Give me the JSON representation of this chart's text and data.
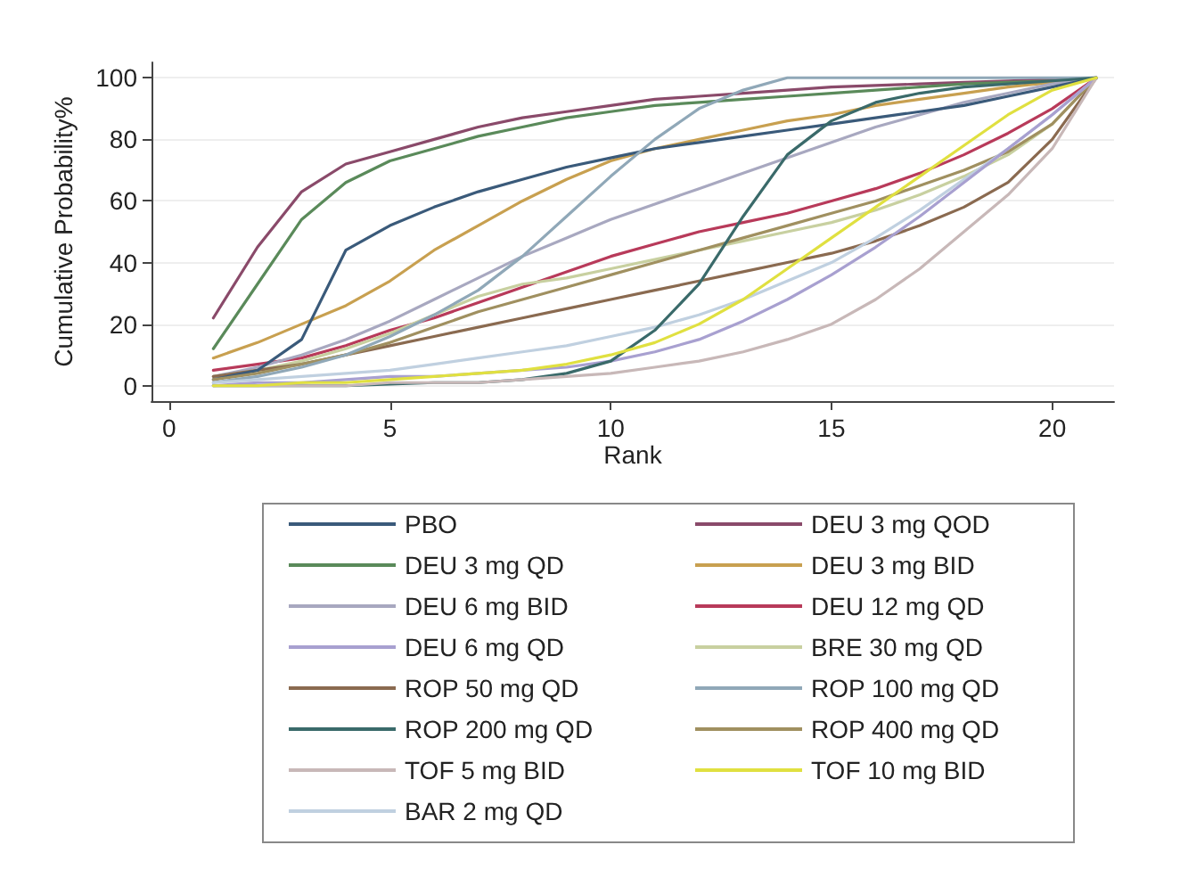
{
  "chart_data": {
    "type": "line",
    "xlabel": "Rank",
    "ylabel": "Cumulative Probability%",
    "x": [
      1,
      2,
      3,
      4,
      5,
      6,
      7,
      8,
      9,
      10,
      11,
      12,
      13,
      14,
      15,
      16,
      17,
      18,
      19,
      20,
      21
    ],
    "xlim": [
      -0.4,
      21.4
    ],
    "xticks": [
      0,
      5,
      10,
      15,
      20
    ],
    "ylim": [
      -5,
      105
    ],
    "yticks": [
      0,
      20,
      40,
      60,
      80,
      100
    ],
    "grid": "y",
    "legend": "bottom",
    "marker": "none",
    "line_style": "solid",
    "series": [
      {
        "name": "PBO",
        "color": "#3a5a7a",
        "values": [
          2,
          5,
          15,
          44,
          52,
          58,
          63,
          67,
          71,
          74,
          77,
          79,
          81,
          83,
          85,
          87,
          89,
          91,
          94,
          97,
          100
        ]
      },
      {
        "name": "DEU 3 mg QOD",
        "color": "#8a4a6a",
        "values": [
          22,
          45,
          63,
          72,
          76,
          80,
          84,
          87,
          89,
          91,
          93,
          94,
          95,
          96,
          97,
          97.5,
          98,
          98.5,
          99,
          99.5,
          100
        ]
      },
      {
        "name": "DEU 3 mg QD",
        "color": "#5a8a5a",
        "values": [
          12,
          33,
          54,
          66,
          73,
          77,
          81,
          84,
          87,
          89,
          91,
          92,
          93,
          94,
          95,
          96,
          97,
          98,
          98.5,
          99,
          100
        ]
      },
      {
        "name": "DEU 3 mg BID",
        "color": "#c8a050",
        "values": [
          9,
          14,
          20,
          26,
          34,
          44,
          52,
          60,
          67,
          73,
          77,
          80,
          83,
          86,
          88,
          91,
          93,
          95,
          97,
          98.5,
          100
        ]
      },
      {
        "name": "DEU 6 mg BID",
        "color": "#a8a8c0",
        "values": [
          3,
          6,
          10,
          15,
          21,
          28,
          35,
          42,
          48,
          54,
          59,
          64,
          69,
          74,
          79,
          84,
          88,
          92,
          95,
          98,
          100
        ]
      },
      {
        "name": "DEU 12 mg QD",
        "color": "#b83a5a",
        "values": [
          5,
          7,
          9,
          13,
          18,
          22,
          27,
          32,
          37,
          42,
          46,
          50,
          53,
          56,
          60,
          64,
          69,
          75,
          82,
          90,
          100
        ]
      },
      {
        "name": "DEU 6 mg QD",
        "color": "#a8a0d0",
        "values": [
          0,
          1,
          1,
          2,
          3,
          3,
          4,
          5,
          6,
          8,
          11,
          15,
          21,
          28,
          36,
          45,
          55,
          66,
          77,
          88,
          100
        ]
      },
      {
        "name": "BRE 30 mg QD",
        "color": "#c8d0a0",
        "values": [
          3,
          5,
          8,
          12,
          17,
          23,
          29,
          33,
          35,
          38,
          41,
          44,
          47,
          50,
          53,
          57,
          62,
          68,
          75,
          85,
          100
        ]
      },
      {
        "name": "ROP 50 mg QD",
        "color": "#8a6a50",
        "values": [
          3,
          5,
          7,
          10,
          13,
          16,
          19,
          22,
          25,
          28,
          31,
          34,
          37,
          40,
          43,
          47,
          52,
          58,
          66,
          80,
          100
        ]
      },
      {
        "name": "ROP 100 mg QD",
        "color": "#90a8b8",
        "values": [
          1,
          3,
          6,
          10,
          16,
          23,
          31,
          42,
          55,
          68,
          80,
          90,
          96,
          100,
          100,
          100,
          100,
          100,
          100,
          100,
          100
        ]
      },
      {
        "name": "ROP 200 mg QD",
        "color": "#3a6a6a",
        "values": [
          0,
          0,
          0,
          0,
          0.5,
          1,
          1,
          2,
          4,
          8,
          18,
          33,
          55,
          75,
          86,
          92,
          95,
          97,
          98,
          99,
          100
        ]
      },
      {
        "name": "ROP 400 mg QD",
        "color": "#a09060",
        "values": [
          2,
          4,
          7,
          10,
          14,
          19,
          24,
          28,
          32,
          36,
          40,
          44,
          48,
          52,
          56,
          60,
          65,
          70,
          76,
          85,
          100
        ]
      },
      {
        "name": "TOF 5 mg BID",
        "color": "#c8b8b8",
        "values": [
          0,
          0,
          0,
          0,
          1,
          1,
          1,
          2,
          3,
          4,
          6,
          8,
          11,
          15,
          20,
          28,
          38,
          50,
          62,
          77,
          100
        ]
      },
      {
        "name": "TOF 10 mg BID",
        "color": "#e0e040",
        "values": [
          0,
          0,
          1,
          1,
          2,
          3,
          4,
          5,
          7,
          10,
          14,
          20,
          28,
          38,
          48,
          58,
          68,
          78,
          88,
          96,
          100
        ]
      },
      {
        "name": "BAR 2 mg QD",
        "color": "#c0d0e0",
        "values": [
          1,
          2,
          3,
          4,
          5,
          7,
          9,
          11,
          13,
          16,
          19,
          23,
          28,
          34,
          40,
          48,
          57,
          67,
          77,
          88,
          100
        ]
      }
    ]
  }
}
